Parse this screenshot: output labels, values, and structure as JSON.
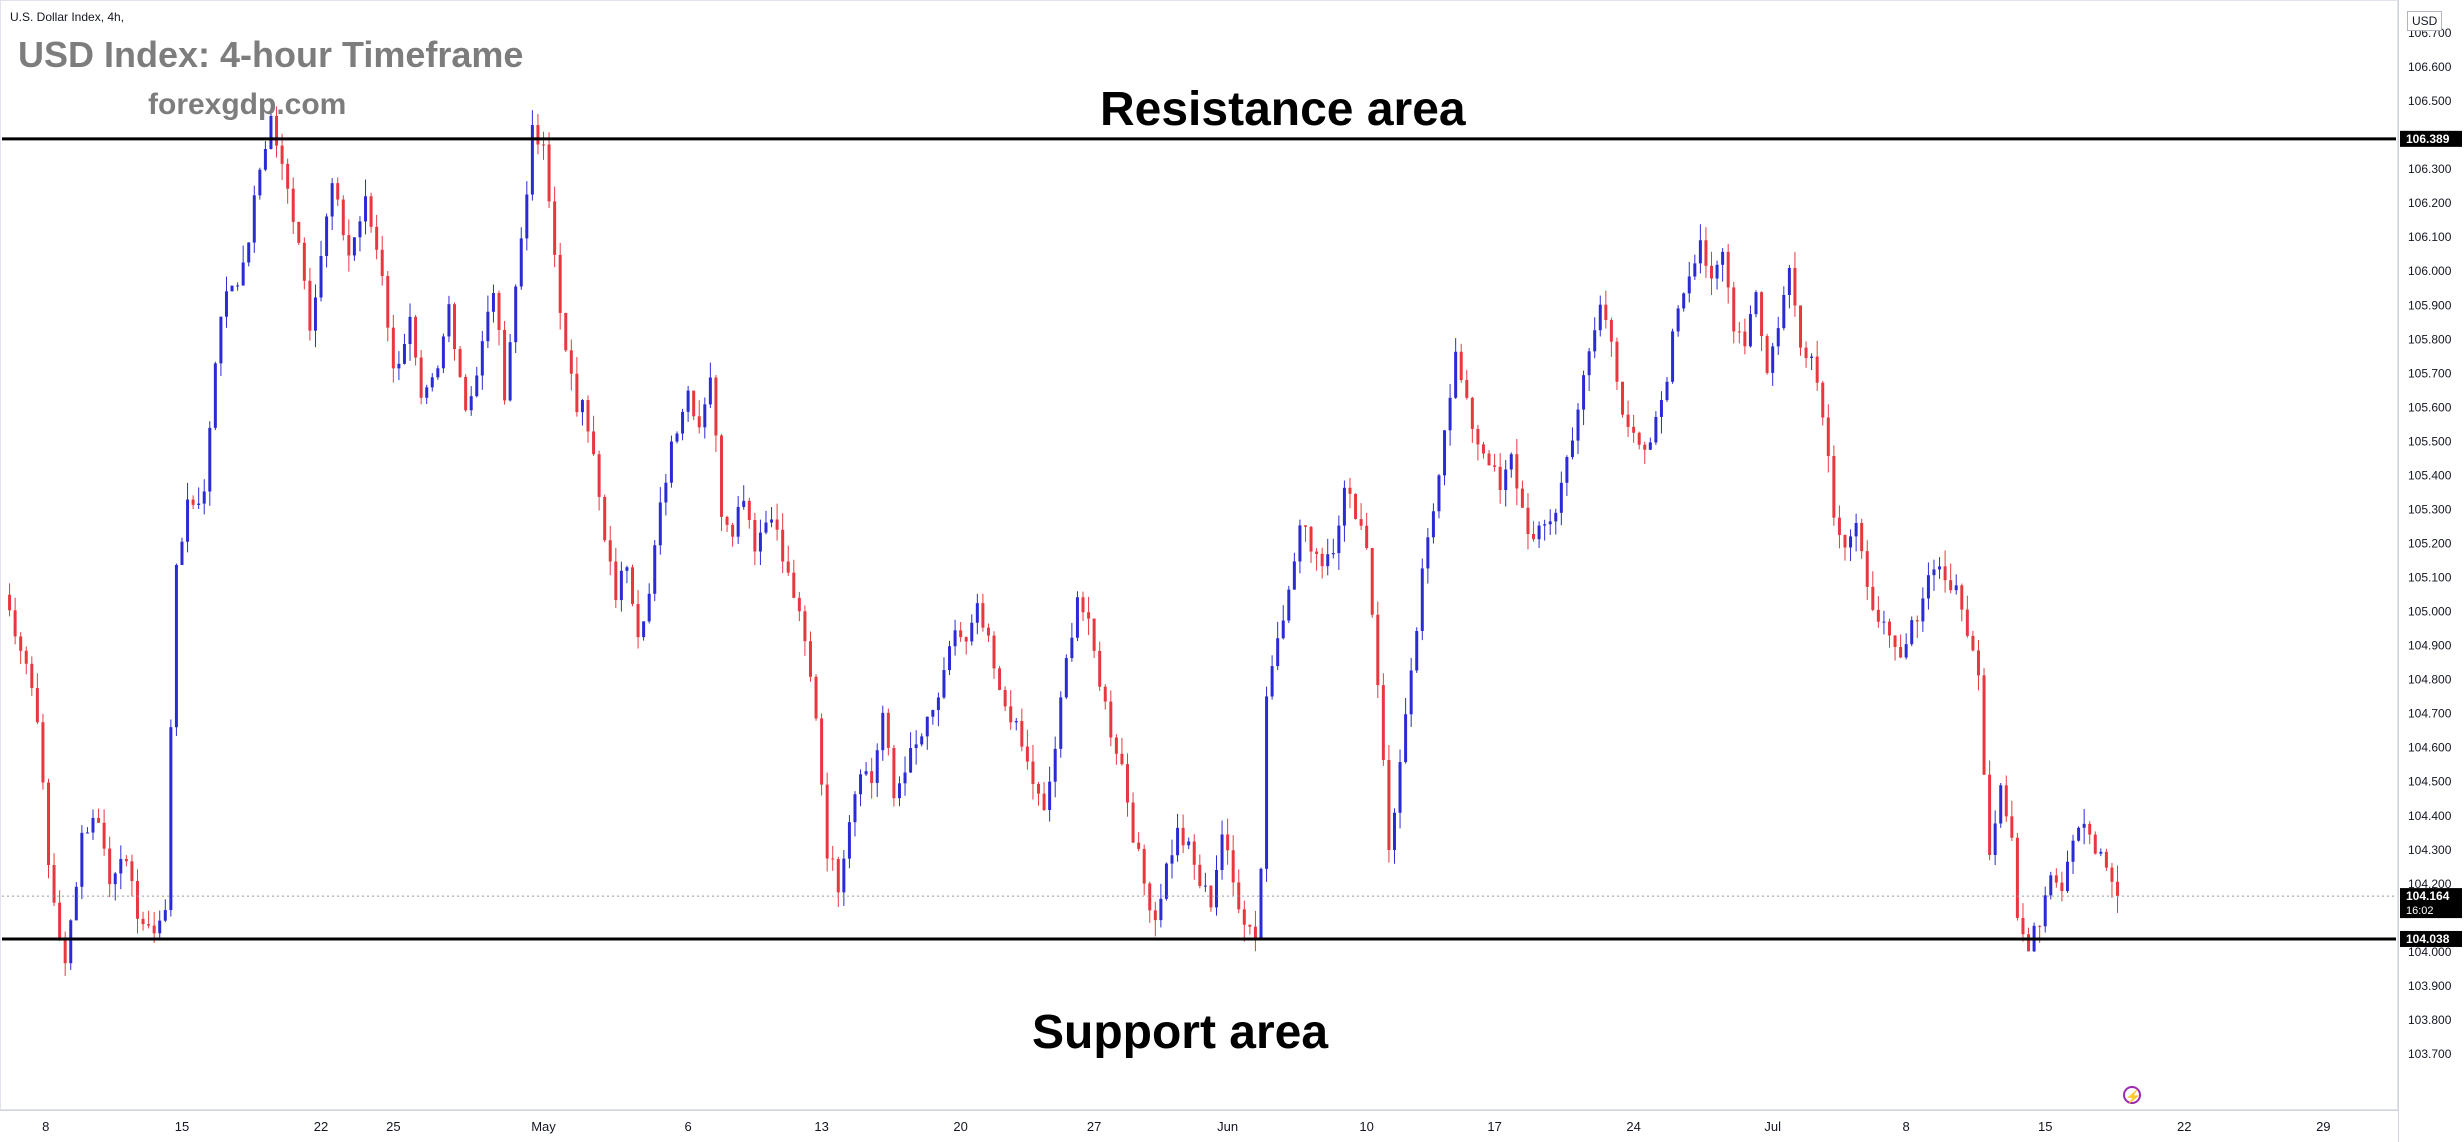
{
  "chart_data": {
    "type": "candlestick",
    "symbol_line": "U.S. Dollar Index, 4h,",
    "title": "USD Index: 4-hour Timeframe",
    "source": "forexgdp.com",
    "currency": "USD",
    "y_ticks": [
      "106.700",
      "106.600",
      "106.500",
      "106.300",
      "106.200",
      "106.100",
      "106.000",
      "105.900",
      "105.800",
      "105.700",
      "105.600",
      "105.500",
      "105.400",
      "105.300",
      "105.200",
      "105.100",
      "105.000",
      "104.900",
      "104.800",
      "104.700",
      "104.600",
      "104.500",
      "104.400",
      "104.300",
      "104.200",
      "104.000",
      "103.900",
      "103.800",
      "103.700"
    ],
    "y_tick_values": [
      106.7,
      106.6,
      106.5,
      106.3,
      106.2,
      106.1,
      106.0,
      105.9,
      105.8,
      105.7,
      105.6,
      105.5,
      105.4,
      105.3,
      105.2,
      105.1,
      105.0,
      104.9,
      104.8,
      104.7,
      104.6,
      104.5,
      104.4,
      104.3,
      104.2,
      104.0,
      103.9,
      103.8,
      103.7
    ],
    "ylim": [
      103.65,
      106.75
    ],
    "x_ticks": [
      "8",
      "15",
      "22",
      "25",
      "May",
      "6",
      "13",
      "20",
      "27",
      "Jun",
      "10",
      "17",
      "24",
      "Jul",
      "8",
      "15",
      "22",
      "29"
    ],
    "x_tick_index": [
      7.5,
      32,
      57,
      70,
      97,
      123,
      147,
      172,
      196,
      220,
      245,
      268,
      293,
      318,
      342,
      367,
      392,
      417
    ],
    "x_count": 420,
    "annotations": {
      "resistance": {
        "label": "Resistance area",
        "value": 106.389,
        "price_label": "106.389"
      },
      "support": {
        "label": "Support area",
        "value": 104.038,
        "price_label": "104.038"
      },
      "last_price": {
        "value": 104.164,
        "price_label": "104.164",
        "countdown": "16:02"
      }
    },
    "waypoints": [
      [
        0,
        105.05
      ],
      [
        4,
        104.85
      ],
      [
        6,
        104.7
      ],
      [
        8,
        104.25
      ],
      [
        10,
        104.05
      ],
      [
        11,
        103.95
      ],
      [
        14,
        104.35
      ],
      [
        17,
        104.4
      ],
      [
        19,
        104.2
      ],
      [
        21,
        104.3
      ],
      [
        24,
        104.12
      ],
      [
        26,
        104.05
      ],
      [
        29,
        104.12
      ],
      [
        30,
        104.65
      ],
      [
        31,
        105.15
      ],
      [
        33,
        105.3
      ],
      [
        36,
        105.35
      ],
      [
        38,
        105.75
      ],
      [
        40,
        105.95
      ],
      [
        43,
        106.0
      ],
      [
        46,
        106.3
      ],
      [
        48,
        106.45
      ],
      [
        50,
        106.3
      ],
      [
        53,
        106.1
      ],
      [
        55,
        105.85
      ],
      [
        57,
        106.05
      ],
      [
        59,
        106.25
      ],
      [
        62,
        106.05
      ],
      [
        65,
        106.2
      ],
      [
        68,
        106.0
      ],
      [
        70,
        105.7
      ],
      [
        73,
        105.85
      ],
      [
        75,
        105.6
      ],
      [
        78,
        105.7
      ],
      [
        80,
        105.9
      ],
      [
        83,
        105.6
      ],
      [
        85,
        105.7
      ],
      [
        88,
        105.95
      ],
      [
        90,
        105.65
      ],
      [
        93,
        106.1
      ],
      [
        95,
        106.4
      ],
      [
        97,
        106.35
      ],
      [
        99,
        106.05
      ],
      [
        101,
        105.75
      ],
      [
        103,
        105.6
      ],
      [
        104,
        105.65
      ],
      [
        106,
        105.45
      ],
      [
        108,
        105.2
      ],
      [
        110,
        105.05
      ],
      [
        112,
        105.15
      ],
      [
        114,
        104.95
      ],
      [
        116,
        105.05
      ],
      [
        118,
        105.3
      ],
      [
        120,
        105.5
      ],
      [
        123,
        105.65
      ],
      [
        125,
        105.55
      ],
      [
        127,
        105.7
      ],
      [
        129,
        105.3
      ],
      [
        131,
        105.25
      ],
      [
        133,
        105.35
      ],
      [
        135,
        105.2
      ],
      [
        138,
        105.3
      ],
      [
        140,
        105.15
      ],
      [
        142,
        105.05
      ],
      [
        144,
        104.9
      ],
      [
        146,
        104.7
      ],
      [
        148,
        104.3
      ],
      [
        150,
        104.2
      ],
      [
        152,
        104.4
      ],
      [
        154,
        104.55
      ],
      [
        156,
        104.5
      ],
      [
        158,
        104.7
      ],
      [
        160,
        104.45
      ],
      [
        162,
        104.55
      ],
      [
        164,
        104.6
      ],
      [
        167,
        104.7
      ],
      [
        169,
        104.8
      ],
      [
        171,
        104.95
      ],
      [
        173,
        104.9
      ],
      [
        175,
        105.0
      ],
      [
        177,
        104.9
      ],
      [
        179,
        104.75
      ],
      [
        181,
        104.7
      ],
      [
        183,
        104.6
      ],
      [
        185,
        104.5
      ],
      [
        187,
        104.4
      ],
      [
        189,
        104.6
      ],
      [
        191,
        104.85
      ],
      [
        193,
        105.05
      ],
      [
        195,
        104.95
      ],
      [
        197,
        104.8
      ],
      [
        199,
        104.65
      ],
      [
        201,
        104.55
      ],
      [
        203,
        104.35
      ],
      [
        205,
        104.2
      ],
      [
        207,
        104.1
      ],
      [
        209,
        104.25
      ],
      [
        211,
        104.35
      ],
      [
        213,
        104.3
      ],
      [
        215,
        104.2
      ],
      [
        217,
        104.15
      ],
      [
        219,
        104.35
      ],
      [
        221,
        104.2
      ],
      [
        223,
        104.1
      ],
      [
        225,
        104.05
      ],
      [
        226,
        104.25
      ],
      [
        227,
        104.75
      ],
      [
        229,
        104.95
      ],
      [
        231,
        105.05
      ],
      [
        233,
        105.25
      ],
      [
        235,
        105.2
      ],
      [
        237,
        105.15
      ],
      [
        239,
        105.2
      ],
      [
        241,
        105.35
      ],
      [
        243,
        105.3
      ],
      [
        245,
        105.2
      ],
      [
        247,
        104.8
      ],
      [
        249,
        104.3
      ],
      [
        251,
        104.55
      ],
      [
        253,
        104.8
      ],
      [
        255,
        105.1
      ],
      [
        257,
        105.3
      ],
      [
        259,
        105.55
      ],
      [
        261,
        105.75
      ],
      [
        263,
        105.6
      ],
      [
        265,
        105.5
      ],
      [
        267,
        105.45
      ],
      [
        269,
        105.35
      ],
      [
        271,
        105.45
      ],
      [
        273,
        105.3
      ],
      [
        275,
        105.2
      ],
      [
        277,
        105.25
      ],
      [
        279,
        105.3
      ],
      [
        281,
        105.45
      ],
      [
        283,
        105.6
      ],
      [
        285,
        105.75
      ],
      [
        287,
        105.9
      ],
      [
        289,
        105.8
      ],
      [
        291,
        105.6
      ],
      [
        293,
        105.5
      ],
      [
        295,
        105.45
      ],
      [
        297,
        105.55
      ],
      [
        299,
        105.7
      ],
      [
        301,
        105.9
      ],
      [
        303,
        106.0
      ],
      [
        305,
        106.1
      ],
      [
        307,
        105.95
      ],
      [
        309,
        106.05
      ],
      [
        311,
        105.85
      ],
      [
        313,
        105.8
      ],
      [
        315,
        105.95
      ],
      [
        317,
        105.7
      ],
      [
        319,
        105.85
      ],
      [
        321,
        106.0
      ],
      [
        323,
        105.8
      ],
      [
        325,
        105.75
      ],
      [
        327,
        105.6
      ],
      [
        329,
        105.3
      ],
      [
        331,
        105.2
      ],
      [
        333,
        105.25
      ],
      [
        335,
        105.05
      ],
      [
        337,
        105.0
      ],
      [
        339,
        104.9
      ],
      [
        341,
        104.85
      ],
      [
        343,
        104.95
      ],
      [
        345,
        105.05
      ],
      [
        347,
        105.15
      ],
      [
        349,
        105.1
      ],
      [
        351,
        105.05
      ],
      [
        353,
        104.95
      ],
      [
        355,
        104.8
      ],
      [
        357,
        104.3
      ],
      [
        359,
        104.5
      ],
      [
        361,
        104.35
      ],
      [
        362,
        104.1
      ],
      [
        364,
        104.0
      ],
      [
        366,
        104.1
      ],
      [
        368,
        104.25
      ],
      [
        370,
        104.2
      ],
      [
        372,
        104.35
      ],
      [
        374,
        104.4
      ],
      [
        376,
        104.3
      ],
      [
        378,
        104.25
      ],
      [
        380,
        104.16
      ]
    ]
  }
}
